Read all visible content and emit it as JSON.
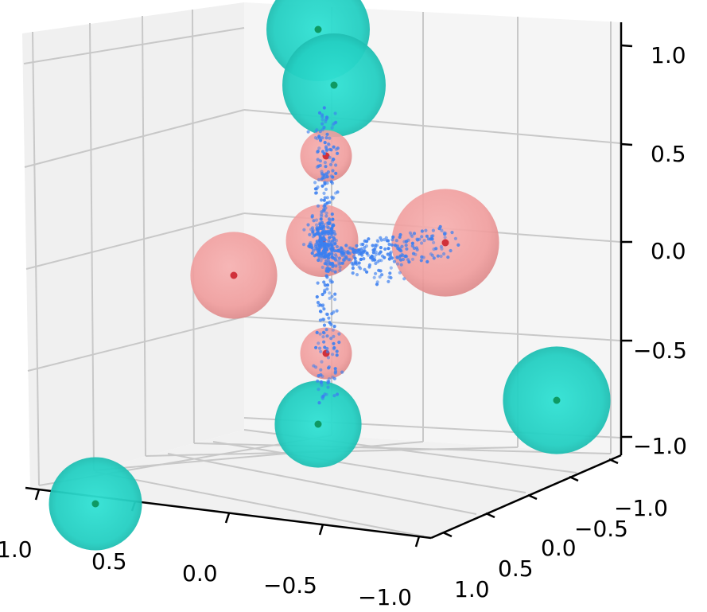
{
  "chart_data": {
    "type": "scatter",
    "projection": "3d",
    "title": "",
    "xlabel": "",
    "ylabel": "",
    "zlabel": "",
    "xlim": [
      -1.0,
      1.0
    ],
    "ylim": [
      -1.0,
      1.0
    ],
    "zlim": [
      -1.0,
      1.0
    ],
    "grid": true,
    "x_ticks": [
      "1.0",
      "0.5",
      "0.0",
      "−0.5",
      "−1.0"
    ],
    "y_ticks": [
      "−1.0",
      "−0.5",
      "0.0",
      "0.5",
      "1.0"
    ],
    "z_ticks": [
      "1.0",
      "0.5",
      "0.0",
      "−0.5",
      "−1.0"
    ],
    "colors": {
      "cyan_sphere": "#2ad4c6",
      "cyan_sphere_dark": "#1a9c94",
      "red_sphere": "#f2a0a0",
      "red_sphere_dark": "#d97e80",
      "center_dot_cyan": "#0e9a63",
      "center_dot_red": "#d0303a",
      "points": "#3b7ff0",
      "grid": "#c8c8c8",
      "pane_left": "#f0f0f0",
      "pane_back": "#f4f4f4",
      "pane_floor": "#f2f2f2"
    },
    "series": [
      {
        "kind": "spheres-cyan",
        "points": [
          {
            "x": 1,
            "y": 1,
            "z": 1,
            "r": 0.5
          },
          {
            "x": -1,
            "y": -1,
            "z": 1,
            "r": 0.5
          },
          {
            "x": 1,
            "y": 1,
            "z": -1,
            "r": 0.42
          },
          {
            "x": 1,
            "y": -1,
            "z": -1,
            "r": 0.45
          },
          {
            "x": -1,
            "y": 1,
            "z": -1,
            "r": 0.52
          }
        ]
      },
      {
        "kind": "spheres-red",
        "points": [
          {
            "x": 0,
            "y": 0,
            "z": 0.5,
            "r": 0.25
          },
          {
            "x": 0,
            "y": 0,
            "z": -0.5,
            "r": 0.25
          },
          {
            "x": 0.5,
            "y": 0.5,
            "z": 0,
            "r": 0.35
          },
          {
            "x": -1,
            "y": 0,
            "z": 0,
            "r": 0.52
          },
          {
            "x": 0.4,
            "y": -0.4,
            "z": 0,
            "r": 0.42
          }
        ]
      },
      {
        "kind": "points",
        "arms": [
          {
            "from": [
              0,
              0,
              0
            ],
            "to": [
              0,
              0,
              0.7
            ],
            "count": 150
          },
          {
            "from": [
              0,
              0,
              0
            ],
            "to": [
              0,
              0,
              -0.7
            ],
            "count": 120
          },
          {
            "from": [
              0,
              0,
              0
            ],
            "to": [
              -1.0,
              0,
              0
            ],
            "count": 180
          },
          {
            "from": [
              0,
              0,
              0
            ],
            "to": [
              0.9,
              0.9,
              0
            ],
            "count": 170
          },
          {
            "from": [
              0,
              0,
              0
            ],
            "to": [
              0,
              0.6,
              -0.2
            ],
            "count": 90
          }
        ]
      }
    ]
  }
}
